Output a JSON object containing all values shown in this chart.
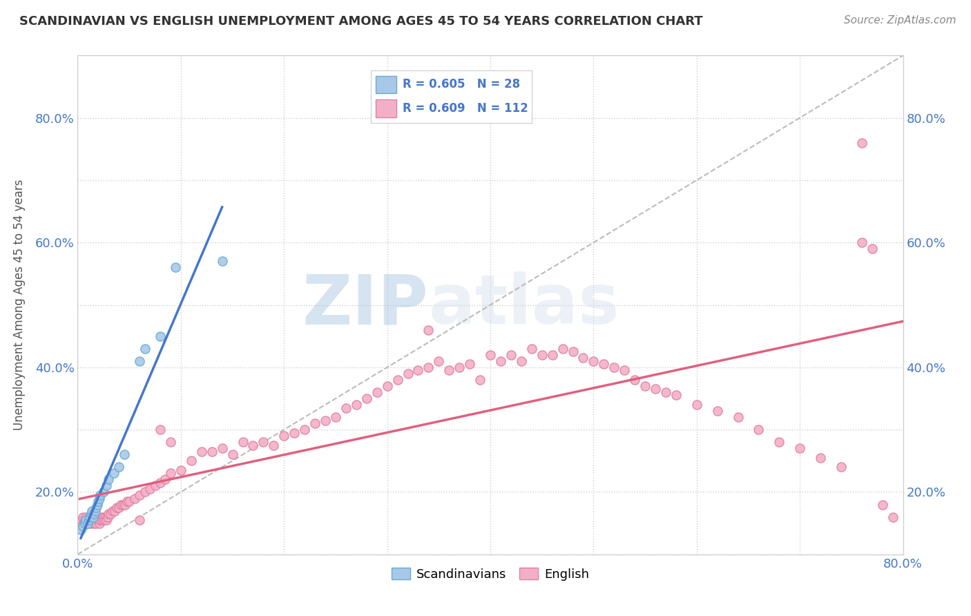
{
  "title": "SCANDINAVIAN VS ENGLISH UNEMPLOYMENT AMONG AGES 45 TO 54 YEARS CORRELATION CHART",
  "source": "Source: ZipAtlas.com",
  "ylabel": "Unemployment Among Ages 45 to 54 years",
  "xlim": [
    0,
    0.8
  ],
  "ylim": [
    0,
    0.8
  ],
  "scand_color": "#a8c8e8",
  "english_color": "#f4afc8",
  "scand_edge": "#6aaad4",
  "english_edge": "#e080a0",
  "scand_line_color": "#4477cc",
  "english_line_color": "#e06080",
  "ref_line_color": "#bbbbbb",
  "legend_r_scand": "R = 0.605",
  "legend_n_scand": "N = 28",
  "legend_r_english": "R = 0.609",
  "legend_n_english": "N = 112",
  "legend_label_scand": "Scandinavians",
  "legend_label_english": "English",
  "watermark_zip": "ZIP",
  "watermark_atlas": "atlas",
  "background_color": "#ffffff",
  "scand_x": [
    0.003,
    0.005,
    0.007,
    0.008,
    0.01,
    0.011,
    0.012,
    0.013,
    0.014,
    0.015,
    0.016,
    0.017,
    0.018,
    0.019,
    0.02,
    0.021,
    0.022,
    0.025,
    0.028,
    0.03,
    0.035,
    0.04,
    0.045,
    0.06,
    0.065,
    0.08,
    0.095,
    0.14
  ],
  "scand_y": [
    0.04,
    0.045,
    0.05,
    0.055,
    0.05,
    0.055,
    0.06,
    0.065,
    0.07,
    0.06,
    0.065,
    0.07,
    0.075,
    0.08,
    0.085,
    0.09,
    0.095,
    0.1,
    0.11,
    0.12,
    0.13,
    0.14,
    0.16,
    0.31,
    0.33,
    0.35,
    0.46,
    0.47
  ],
  "english_x": [
    0.002,
    0.004,
    0.005,
    0.006,
    0.007,
    0.008,
    0.009,
    0.01,
    0.011,
    0.012,
    0.013,
    0.014,
    0.015,
    0.016,
    0.017,
    0.018,
    0.019,
    0.02,
    0.021,
    0.022,
    0.023,
    0.024,
    0.025,
    0.026,
    0.027,
    0.028,
    0.029,
    0.03,
    0.032,
    0.034,
    0.036,
    0.038,
    0.04,
    0.042,
    0.044,
    0.046,
    0.048,
    0.05,
    0.055,
    0.06,
    0.065,
    0.07,
    0.075,
    0.08,
    0.085,
    0.09,
    0.1,
    0.11,
    0.12,
    0.13,
    0.14,
    0.15,
    0.16,
    0.17,
    0.18,
    0.19,
    0.2,
    0.21,
    0.22,
    0.23,
    0.24,
    0.25,
    0.26,
    0.27,
    0.28,
    0.29,
    0.3,
    0.31,
    0.32,
    0.33,
    0.34,
    0.35,
    0.36,
    0.37,
    0.38,
    0.39,
    0.4,
    0.41,
    0.42,
    0.43,
    0.44,
    0.45,
    0.46,
    0.47,
    0.48,
    0.49,
    0.5,
    0.51,
    0.52,
    0.53,
    0.54,
    0.55,
    0.56,
    0.57,
    0.58,
    0.6,
    0.62,
    0.64,
    0.66,
    0.68,
    0.7,
    0.72,
    0.74,
    0.76,
    0.76,
    0.77,
    0.78,
    0.79,
    0.34,
    0.06,
    0.08,
    0.09
  ],
  "english_y": [
    0.05,
    0.055,
    0.06,
    0.05,
    0.055,
    0.06,
    0.05,
    0.055,
    0.06,
    0.05,
    0.055,
    0.06,
    0.05,
    0.055,
    0.06,
    0.05,
    0.055,
    0.06,
    0.05,
    0.055,
    0.06,
    0.055,
    0.06,
    0.055,
    0.06,
    0.055,
    0.06,
    0.065,
    0.065,
    0.07,
    0.07,
    0.075,
    0.075,
    0.08,
    0.08,
    0.08,
    0.085,
    0.085,
    0.09,
    0.095,
    0.1,
    0.105,
    0.11,
    0.115,
    0.12,
    0.13,
    0.135,
    0.15,
    0.165,
    0.165,
    0.17,
    0.16,
    0.18,
    0.175,
    0.18,
    0.175,
    0.19,
    0.195,
    0.2,
    0.21,
    0.215,
    0.22,
    0.235,
    0.24,
    0.25,
    0.26,
    0.27,
    0.28,
    0.29,
    0.295,
    0.3,
    0.31,
    0.295,
    0.3,
    0.305,
    0.28,
    0.32,
    0.31,
    0.32,
    0.31,
    0.33,
    0.32,
    0.32,
    0.33,
    0.325,
    0.315,
    0.31,
    0.305,
    0.3,
    0.295,
    0.28,
    0.27,
    0.265,
    0.26,
    0.255,
    0.24,
    0.23,
    0.22,
    0.2,
    0.18,
    0.17,
    0.155,
    0.14,
    0.5,
    0.66,
    0.49,
    0.08,
    0.06,
    0.36,
    0.055,
    0.2,
    0.18
  ]
}
